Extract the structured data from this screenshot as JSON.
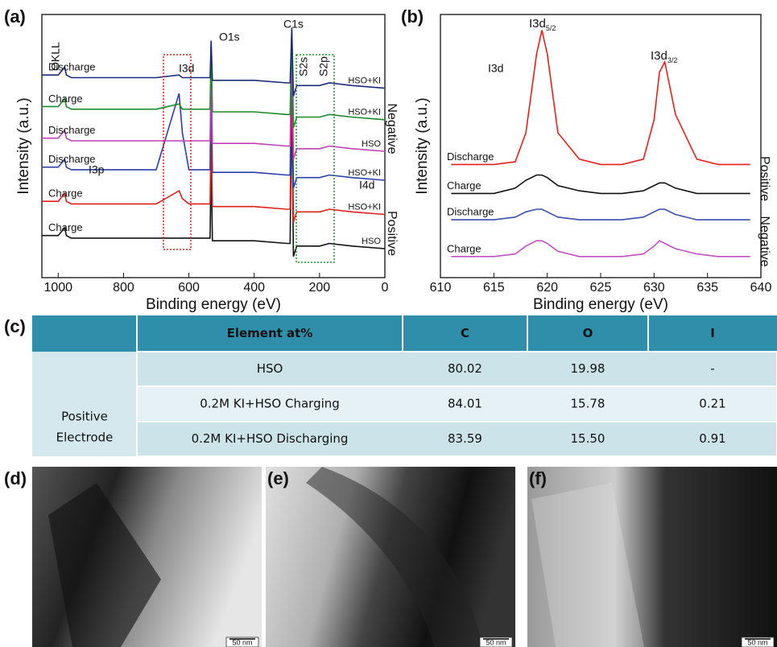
{
  "chart_data": [
    {
      "type": "line",
      "panel": "(a)",
      "xlabel": "Binding energy (eV)",
      "ylabel": "Intensity (a.u.)",
      "xlim": [
        1050,
        0
      ],
      "xticks": [
        1000,
        800,
        600,
        400,
        200,
        0
      ],
      "ylim": [
        0,
        100
      ],
      "x": [
        1050,
        1000,
        980,
        975,
        960,
        900,
        800,
        700,
        630,
        620,
        600,
        550,
        535,
        532,
        528,
        400,
        300,
        290,
        285,
        280,
        270,
        200,
        170,
        100,
        0
      ],
      "series": [
        {
          "name": "Charge",
          "color": "#111111",
          "sample": "HSO",
          "values": [
            16,
            16,
            19,
            16,
            15,
            15,
            15,
            15,
            15,
            15,
            15,
            15,
            15,
            44,
            14,
            14,
            13,
            13,
            69,
            8,
            12,
            12,
            13,
            12,
            11
          ]
        },
        {
          "name": "Charge",
          "color": "#e0201b",
          "sample": "HSO+KI",
          "values": [
            29,
            29,
            32,
            29,
            28,
            28,
            28,
            28,
            33,
            30,
            28,
            28,
            28,
            57,
            27,
            27,
            26,
            26,
            82,
            21,
            25,
            25,
            26,
            25,
            24
          ]
        },
        {
          "name": "Discharge",
          "color": "#2b3fa8",
          "sample": "HSO+KI",
          "values": [
            42,
            42,
            45,
            42,
            41,
            41,
            41,
            41,
            70,
            55,
            41,
            41,
            41,
            80,
            40,
            40,
            39,
            39,
            90,
            34,
            38,
            38,
            39,
            38,
            37
          ]
        },
        {
          "name": "Discharge",
          "color": "#c040b8",
          "sample": "HSO",
          "values": [
            53,
            53,
            56,
            53,
            52,
            52,
            52,
            52,
            52,
            52,
            52,
            52,
            52,
            81,
            51,
            51,
            50,
            50,
            91,
            45,
            49,
            49,
            50,
            49,
            48
          ]
        },
        {
          "name": "Charge",
          "color": "#1a8a2a",
          "sample": "HSO+KI",
          "values": [
            65,
            65,
            68,
            65,
            64,
            64,
            64,
            64,
            66,
            64,
            64,
            64,
            64,
            88,
            63,
            63,
            62,
            62,
            93,
            57,
            61,
            61,
            62,
            61,
            60
          ]
        },
        {
          "name": "Discharge",
          "color": "#1c2a7a",
          "sample": "HSO+KI",
          "values": [
            77,
            77,
            80,
            77,
            76,
            76,
            76,
            76,
            77,
            76,
            76,
            76,
            76,
            90,
            75,
            75,
            74,
            74,
            95,
            69,
            73,
            73,
            74,
            73,
            72
          ]
        }
      ],
      "annotations": [
        "OKLL",
        "I3d",
        "O1s",
        "C1s",
        "S2s",
        "S2p",
        "I3p",
        "I4d"
      ],
      "side_labels": [
        "Negative",
        "Positive"
      ]
    },
    {
      "type": "line",
      "panel": "(b)",
      "xlabel": "Binding energy (eV)",
      "ylabel": "Intensity (a.u.)",
      "xlim": [
        610,
        640
      ],
      "xticks": [
        610,
        615,
        620,
        625,
        630,
        635,
        640
      ],
      "ylim": [
        0,
        100
      ],
      "x": [
        611,
        613,
        615,
        617,
        618,
        619,
        619.5,
        620,
        621,
        623,
        625,
        627,
        629,
        630,
        630.5,
        631,
        632,
        634,
        636,
        638,
        639
      ],
      "series": [
        {
          "name": "Discharge",
          "color": "#e8201c",
          "values": [
            43,
            43,
            43,
            44,
            55,
            85,
            94,
            85,
            55,
            45,
            43,
            43,
            45,
            60,
            78,
            82,
            62,
            45,
            43,
            43,
            43
          ]
        },
        {
          "name": "Charge",
          "color": "#111111",
          "values": [
            32,
            32,
            32,
            34,
            37,
            39,
            39,
            38,
            35,
            33,
            32,
            32,
            33,
            35,
            36,
            36,
            34,
            32,
            32,
            32,
            32
          ]
        },
        {
          "name": "Discharge",
          "color": "#3a4fb0",
          "values": [
            22,
            22,
            22,
            23,
            25,
            26,
            26,
            25,
            23,
            22,
            22,
            22,
            23,
            25,
            26,
            26,
            24,
            22,
            22,
            22,
            22
          ]
        },
        {
          "name": "Charge",
          "color": "#c050c0",
          "values": [
            8,
            8,
            8,
            9,
            12,
            14,
            14,
            13,
            10,
            8,
            8,
            8,
            9,
            12,
            14,
            13,
            11,
            9,
            8,
            8,
            8
          ]
        }
      ],
      "annotations": [
        "I3d"
      ],
      "peak_labels": [
        {
          "text": "I3d",
          "sub": "5/2"
        },
        {
          "text": "I3d",
          "sub": "3/2"
        }
      ],
      "side_labels": [
        "Positive",
        "Negative"
      ]
    }
  ],
  "table": {
    "panel": "(c)",
    "header": [
      "Element at%",
      "C",
      "O",
      "I"
    ],
    "group": [
      "Positive",
      "Electrode"
    ],
    "rows": [
      [
        "HSO",
        "80.02",
        "19.98",
        "-"
      ],
      [
        "0.2M KI+HSO Charging",
        "84.01",
        "15.78",
        "0.21"
      ],
      [
        "0.2M KI+HSO Discharging",
        "83.59",
        "15.50",
        "0.91"
      ]
    ]
  },
  "images": [
    {
      "panel": "(d)",
      "scale": "50 nm"
    },
    {
      "panel": "(e)",
      "scale": "50 nm"
    },
    {
      "panel": "(f)",
      "scale": "50 nm"
    }
  ]
}
